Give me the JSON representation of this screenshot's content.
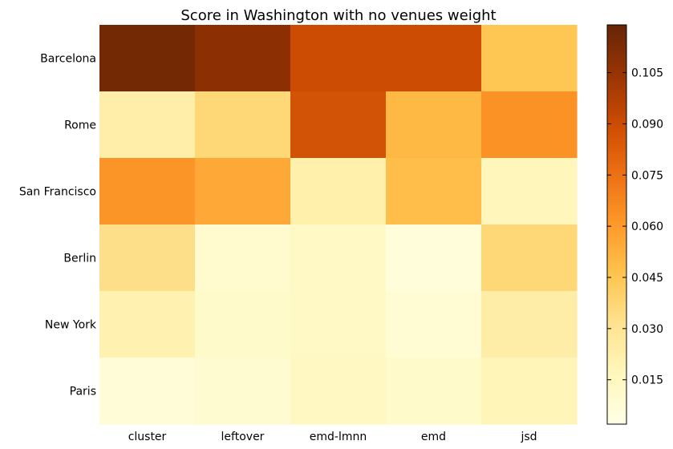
{
  "chart_data": {
    "type": "heatmap",
    "title": "Score in Washington with no venues weight",
    "xlabel": "",
    "ylabel": "",
    "columns": [
      "cluster",
      "leftover",
      "emd-lmnn",
      "emd",
      "jsd"
    ],
    "rows": [
      "Barcelona",
      "Rome",
      "San Francisco",
      "Berlin",
      "New York",
      "Paris"
    ],
    "values": [
      [
        0.115,
        0.108,
        0.09,
        0.09,
        0.045
      ],
      [
        0.023,
        0.037,
        0.087,
        0.05,
        0.063
      ],
      [
        0.062,
        0.055,
        0.022,
        0.048,
        0.017
      ],
      [
        0.033,
        0.01,
        0.013,
        0.006,
        0.037
      ],
      [
        0.021,
        0.012,
        0.013,
        0.008,
        0.024
      ],
      [
        0.007,
        0.009,
        0.014,
        0.012,
        0.018
      ]
    ],
    "colorbar": {
      "min": 0.002,
      "max": 0.119,
      "ticks": [
        0.015,
        0.03,
        0.045,
        0.06,
        0.075,
        0.09,
        0.105
      ],
      "tick_labels": [
        "0.015",
        "0.030",
        "0.045",
        "0.060",
        "0.075",
        "0.090",
        "0.105"
      ],
      "colormap": "YlOrBr",
      "colormap_stops": [
        "#ffffe5",
        "#fff7bc",
        "#fee391",
        "#fec44f",
        "#fe9929",
        "#ec7014",
        "#cc4c02",
        "#993404",
        "#662506"
      ]
    },
    "grid": false,
    "legend": "none"
  }
}
